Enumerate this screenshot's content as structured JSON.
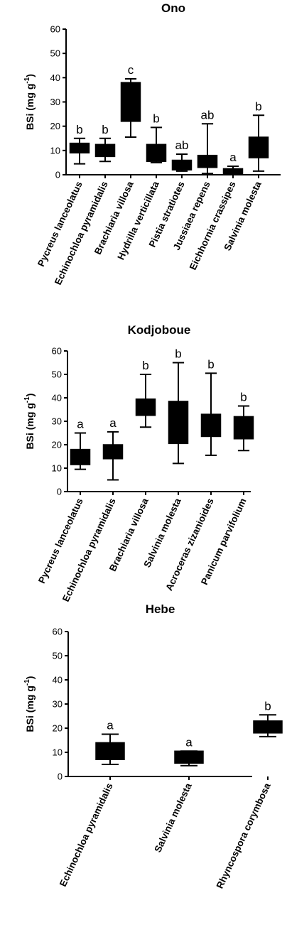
{
  "chart_data": [
    {
      "type": "box",
      "title": "Ono",
      "ylabel": "BSi (mg g",
      "ylabel_sup": "-1",
      "ylabel_close": ")",
      "ylim": [
        0,
        60
      ],
      "yticks": [
        0,
        10,
        20,
        30,
        40,
        50,
        60
      ],
      "grid": false,
      "categories": [
        "Pycreus lanceolatus",
        "Echinochloa pyramidalis",
        "Brachiaria villosa",
        "Hydrilla verticillata",
        "Pistia stratiotes",
        "Jussiaea repens",
        "Eichhornia crassipes",
        "Salvinia molesta"
      ],
      "boxes": [
        {
          "min": 4.5,
          "q1": 9,
          "median": 11,
          "q3": 13,
          "max": 15
        },
        {
          "min": 5.5,
          "q1": 7.5,
          "median": 10,
          "q3": 12.5,
          "max": 15
        },
        {
          "min": 15.5,
          "q1": 22,
          "median": 30,
          "q3": 38,
          "max": 39.5
        },
        {
          "min": 5,
          "q1": 5.5,
          "median": 6,
          "q3": 12.5,
          "max": 19.5
        },
        {
          "min": 1.5,
          "q1": 2,
          "median": 4,
          "q3": 6,
          "max": 8.5
        },
        {
          "min": 0.5,
          "q1": 3,
          "median": 5,
          "q3": 8,
          "max": 21
        },
        {
          "min": 0.2,
          "q1": 0.5,
          "median": 1.5,
          "q3": 2.5,
          "max": 3.5
        },
        {
          "min": 1.5,
          "q1": 7,
          "median": 10,
          "q3": 15.5,
          "max": 24.5
        }
      ],
      "annotations": [
        "b",
        "b",
        "c",
        "b",
        "ab",
        "ab",
        "a",
        "b"
      ]
    },
    {
      "type": "box",
      "title": "Kodjoboue",
      "ylabel": "BSi (mg g",
      "ylabel_sup": "-1",
      "ylabel_close": ")",
      "ylim": [
        0,
        60
      ],
      "yticks": [
        0,
        10,
        20,
        30,
        40,
        50,
        60
      ],
      "grid": false,
      "categories": [
        "Pycreus lanceolatus",
        "Echinochloa pyramidalis",
        "Brachiaria villosa",
        "Salvinia molesta",
        "Acroceras zizanioides",
        "Panicum parvifolium"
      ],
      "boxes": [
        {
          "min": 9.5,
          "q1": 11.5,
          "median": 15,
          "q3": 18,
          "max": 25
        },
        {
          "min": 5,
          "q1": 14,
          "median": 17,
          "q3": 20,
          "max": 25.5
        },
        {
          "min": 27.5,
          "q1": 32.5,
          "median": 36,
          "q3": 39.5,
          "max": 50
        },
        {
          "min": 12,
          "q1": 20.5,
          "median": 30,
          "q3": 38.5,
          "max": 55
        },
        {
          "min": 15.5,
          "q1": 23.5,
          "median": 28.5,
          "q3": 33,
          "max": 50.5
        },
        {
          "min": 17.5,
          "q1": 22.5,
          "median": 27,
          "q3": 32,
          "max": 36.5
        }
      ],
      "annotations": [
        "a",
        "a",
        "b",
        "b",
        "b",
        "b"
      ]
    },
    {
      "type": "box",
      "title": "Hebe",
      "ylabel": "BSi (mg g",
      "ylabel_sup": "-1",
      "ylabel_close": ")",
      "ylim": [
        0,
        60
      ],
      "yticks": [
        0,
        10,
        20,
        30,
        40,
        50,
        60
      ],
      "grid": false,
      "categories": [
        "Echinochloa pyramidalis",
        "Salvinia molesta",
        "Rhyncospora corymbosa"
      ],
      "boxes": [
        {
          "min": 5,
          "q1": 7,
          "median": 10,
          "q3": 14,
          "max": 17.5
        },
        {
          "min": 4.5,
          "q1": 5.5,
          "median": 8,
          "q3": 10.5,
          "max": 10.5
        },
        {
          "min": 16.5,
          "q1": 18,
          "median": 20.5,
          "q3": 23,
          "max": 25.5
        }
      ],
      "annotations": [
        "a",
        "a",
        "b"
      ]
    }
  ]
}
